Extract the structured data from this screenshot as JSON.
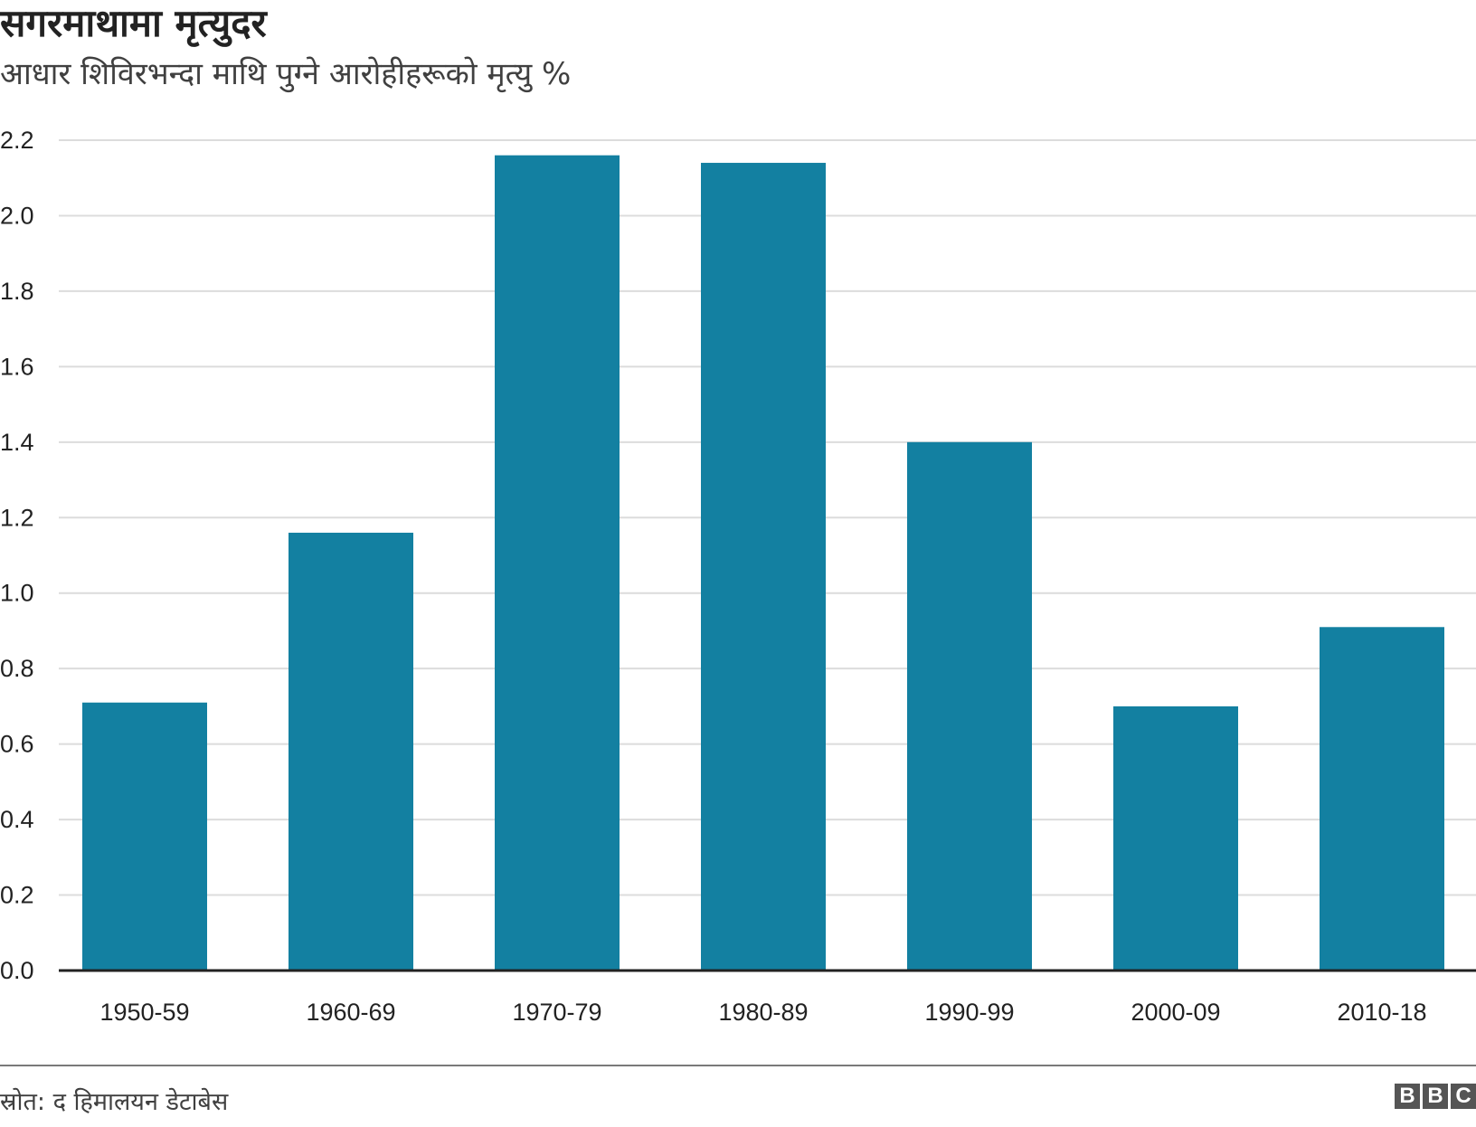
{
  "chart_data": {
    "type": "bar",
    "title": "सगरमाथामा मृत्युदर",
    "subtitle": "आधार शिविरभन्दा माथि पुग्ने आरोहीहरूको मृत्यु %",
    "categories": [
      "1950-59",
      "1960-69",
      "1970-79",
      "1980-89",
      "1990-99",
      "2000-09",
      "2010-18"
    ],
    "values": [
      0.71,
      1.16,
      2.16,
      2.14,
      1.4,
      0.7,
      0.91
    ],
    "yticks": [
      "0.0",
      "0.2",
      "0.4",
      "0.6",
      "0.8",
      "1.0",
      "1.2",
      "1.4",
      "1.6",
      "1.8",
      "2.0",
      "2.2"
    ],
    "ylim": [
      0,
      2.2
    ],
    "grid": true,
    "bar_color": "#1380a1",
    "xlabel": "",
    "ylabel": ""
  },
  "footer": {
    "source": "स्रोत: द हिमालयन डेटाबेस",
    "logo": "BBC",
    "logo_letters": [
      "B",
      "B",
      "C"
    ]
  }
}
